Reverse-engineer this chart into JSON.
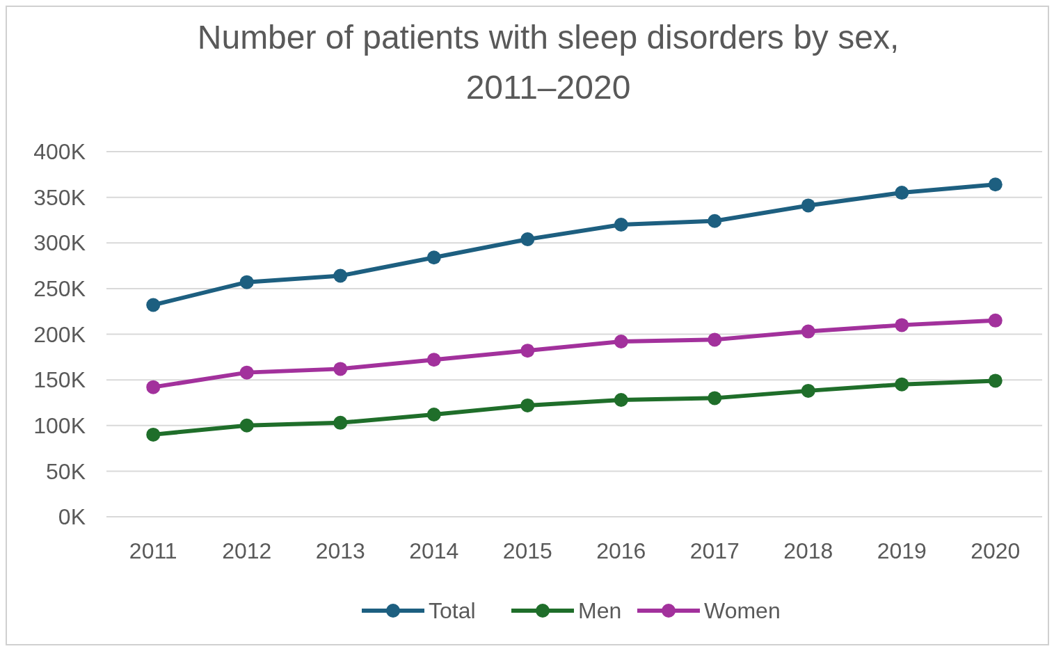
{
  "chart_data": {
    "type": "line",
    "title": "Number of patients with sleep disorders by sex, 2011–2020",
    "categories": [
      "2011",
      "2012",
      "2013",
      "2014",
      "2015",
      "2016",
      "2017",
      "2018",
      "2019",
      "2020"
    ],
    "series": [
      {
        "name": "Total",
        "color": "#1d5f80",
        "values": [
          232,
          257,
          264,
          284,
          304,
          320,
          324,
          341,
          355,
          364
        ]
      },
      {
        "name": "Men",
        "color": "#1f6e2a",
        "values": [
          90,
          100,
          103,
          112,
          122,
          128,
          130,
          138,
          145,
          149
        ]
      },
      {
        "name": "Women",
        "color": "#a2319c",
        "values": [
          142,
          158,
          162,
          172,
          182,
          192,
          194,
          203,
          210,
          215
        ]
      }
    ],
    "ylim": [
      0,
      400
    ],
    "yticks": [
      {
        "value": 0,
        "label": "0K"
      },
      {
        "value": 50,
        "label": "50K"
      },
      {
        "value": 100,
        "label": "100K"
      },
      {
        "value": 150,
        "label": "150K"
      },
      {
        "value": 200,
        "label": "200K"
      },
      {
        "value": 250,
        "label": "250K"
      },
      {
        "value": 300,
        "label": "300K"
      },
      {
        "value": 350,
        "label": "350K"
      },
      {
        "value": 400,
        "label": "400K"
      }
    ],
    "grid": "y",
    "legend": "bottom",
    "marker": "circle",
    "line_style": "solid"
  }
}
